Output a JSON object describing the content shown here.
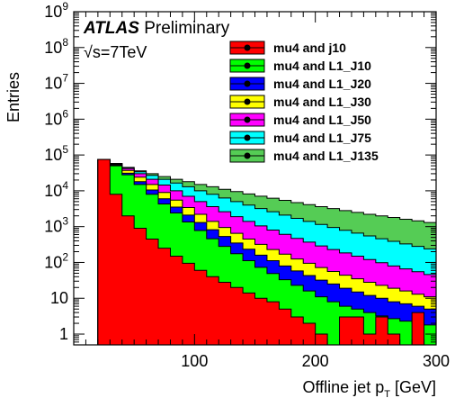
{
  "chart_data": {
    "type": "area",
    "header": {
      "experiment": "ATLAS",
      "status": "Preliminary"
    },
    "energy_label": "√s=7TeV",
    "xlabel": "Offline jet p",
    "xlabel_sub": "T",
    "xlabel_unit": "[GeV]",
    "ylabel": "Entries",
    "xlim": [
      0,
      300
    ],
    "ylim": [
      0.5,
      1000000000
    ],
    "yscale": "log",
    "x_ticks": [
      100,
      200,
      300
    ],
    "y_ticks": [
      {
        "value": 1,
        "base": "1",
        "exp": ""
      },
      {
        "value": 10,
        "base": "10",
        "exp": ""
      },
      {
        "value": 100,
        "base": "10",
        "exp": "2"
      },
      {
        "value": 1000,
        "base": "10",
        "exp": "3"
      },
      {
        "value": 10000,
        "base": "10",
        "exp": "4"
      },
      {
        "value": 100000,
        "base": "10",
        "exp": "5"
      },
      {
        "value": 1000000,
        "base": "10",
        "exp": "6"
      },
      {
        "value": 10000000,
        "base": "10",
        "exp": "7"
      },
      {
        "value": 100000000,
        "base": "10",
        "exp": "8"
      },
      {
        "value": 1000000000,
        "base": "10",
        "exp": "9"
      }
    ],
    "legend_position": "top-right",
    "x_bin_edges": [
      20,
      30,
      40,
      50,
      60,
      70,
      80,
      90,
      100,
      110,
      120,
      130,
      140,
      150,
      160,
      170,
      180,
      190,
      200,
      210,
      220,
      230,
      240,
      250,
      260,
      270,
      280,
      290,
      300
    ],
    "series": [
      {
        "name": "mu4 and L1_J135",
        "color": "#55cc55",
        "values": [
          75000,
          58000,
          45000,
          36000,
          30000,
          25000,
          21000,
          18000,
          15000,
          13000,
          11000,
          9500,
          8200,
          7100,
          6200,
          5400,
          4700,
          4100,
          3600,
          3200,
          2800,
          2500,
          2200,
          2000,
          1800,
          1600,
          1450,
          1300
        ]
      },
      {
        "name": "mu4 and L1_J75",
        "color": "#00ffff",
        "values": [
          75000,
          58000,
          44000,
          34000,
          27000,
          21000,
          16500,
          13000,
          10000,
          8000,
          6300,
          5000,
          4000,
          3200,
          2600,
          2100,
          1700,
          1400,
          1150,
          950,
          790,
          660,
          550,
          460,
          390,
          330,
          280,
          240
        ]
      },
      {
        "name": "mu4 and L1_J50",
        "color": "#ff00ff",
        "values": [
          75000,
          57000,
          42000,
          30000,
          21000,
          14500,
          10000,
          7000,
          5000,
          3600,
          2600,
          1900,
          1400,
          1050,
          800,
          610,
          470,
          370,
          290,
          230,
          185,
          150,
          120,
          98,
          80,
          66,
          55,
          46
        ]
      },
      {
        "name": "mu4 and L1_J30",
        "color": "#ffff00",
        "values": [
          75000,
          55000,
          37000,
          24000,
          15000,
          9000,
          5500,
          3400,
          2200,
          1400,
          950,
          650,
          450,
          320,
          230,
          170,
          125,
          95,
          72,
          56,
          44,
          35,
          28,
          23,
          19,
          16,
          13,
          11
        ]
      },
      {
        "name": "mu4 and L1_J20",
        "color": "#0000ff",
        "values": [
          75000,
          52000,
          31000,
          18000,
          10500,
          6000,
          3500,
          2100,
          1300,
          820,
          530,
          350,
          235,
          160,
          112,
          80,
          58,
          43,
          32,
          25,
          19,
          15,
          12,
          10,
          8,
          7,
          6,
          5
        ]
      },
      {
        "name": "mu4 and L1_J10",
        "color": "#00ff00",
        "values": [
          75000,
          50000,
          28000,
          15000,
          8000,
          4300,
          2400,
          1350,
          780,
          460,
          280,
          175,
          112,
          73,
          49,
          33,
          23,
          16,
          11,
          8,
          6,
          5,
          4,
          3.2,
          2.7,
          2.3,
          2,
          1.8
        ]
      },
      {
        "name": "mu4 and j10",
        "color": "#ff0000",
        "values": [
          75000,
          8000,
          2000,
          900,
          450,
          250,
          150,
          95,
          60,
          40,
          28,
          20,
          14,
          10,
          8,
          5,
          3,
          2,
          1,
          0,
          3,
          3,
          1,
          3,
          1,
          0,
          4,
          0
        ]
      }
    ],
    "legend": [
      {
        "label": "mu4 and j10",
        "color": "#ff0000"
      },
      {
        "label": "mu4 and L1_J10",
        "color": "#00ff00"
      },
      {
        "label": "mu4 and L1_J20",
        "color": "#0000ff"
      },
      {
        "label": "mu4 and L1_J30",
        "color": "#ffff00"
      },
      {
        "label": "mu4 and L1_J50",
        "color": "#ff00ff"
      },
      {
        "label": "mu4 and L1_J75",
        "color": "#00ffff"
      },
      {
        "label": "mu4 and L1_J135",
        "color": "#55cc55"
      }
    ]
  }
}
